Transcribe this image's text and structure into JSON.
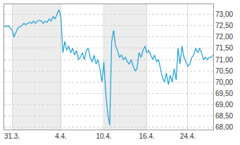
{
  "chart_data": {
    "type": "line",
    "color": "#1a9fd9",
    "grid": true,
    "categories": [
      null,
      null,
      null,
      null,
      "31.3.",
      null,
      null,
      null,
      null,
      null,
      null,
      null,
      null,
      null,
      null,
      null,
      null,
      null,
      null,
      null,
      null,
      null,
      null,
      null,
      null,
      null,
      null,
      null,
      null,
      "4.4.",
      null,
      null,
      null,
      null,
      null,
      null,
      null,
      null,
      null,
      null,
      null,
      null,
      null,
      null,
      null,
      null,
      null,
      null,
      null,
      null,
      null,
      "10.4.",
      null,
      null,
      null,
      null,
      null,
      null,
      null,
      null,
      null,
      null,
      null,
      null,
      null,
      null,
      null,
      null,
      null,
      null,
      null,
      null,
      null,
      "16.4.",
      null,
      null,
      null,
      null,
      null,
      null,
      null,
      null,
      null,
      null,
      null,
      null,
      null,
      null,
      null,
      null,
      null,
      null,
      null,
      null,
      "24.4.",
      null,
      null,
      null,
      null,
      null,
      null,
      null,
      null,
      null,
      null,
      null,
      null,
      null
    ],
    "values": [
      72.5,
      72.45,
      72.5,
      72.4,
      72.3,
      72.0,
      72.2,
      72.4,
      72.45,
      72.5,
      72.6,
      72.55,
      72.6,
      72.65,
      72.6,
      72.7,
      72.6,
      72.7,
      72.75,
      72.7,
      72.6,
      72.7,
      72.65,
      72.8,
      72.7,
      72.9,
      72.8,
      73.0,
      73.2,
      72.9,
      71.3,
      71.8,
      71.4,
      71.6,
      71.3,
      71.5,
      71.2,
      71.4,
      71.0,
      71.1,
      71.3,
      71.0,
      71.4,
      71.5,
      71.1,
      70.9,
      71.2,
      70.8,
      71.0,
      70.6,
      70.0,
      70.9,
      69.5,
      68.6,
      68.1,
      71.8,
      72.3,
      71.6,
      71.4,
      71.1,
      71.2,
      71.0,
      71.1,
      70.9,
      70.8,
      71.0,
      70.7,
      70.5,
      70.6,
      71.3,
      71.1,
      71.4,
      71.6,
      71.3,
      71.4,
      71.2,
      71.0,
      71.2,
      70.9,
      71.0,
      70.6,
      70.2,
      70.0,
      70.4,
      69.9,
      70.3,
      70.0,
      70.6,
      70.1,
      71.5,
      70.8,
      71.6,
      71.1,
      70.9,
      70.7,
      70.8,
      71.1,
      71.2,
      71.5,
      71.3,
      71.5,
      71.3,
      71.0,
      71.1,
      71.0,
      71.1,
      71.1,
      71.2
    ],
    "ylim": [
      67.9,
      73.45
    ],
    "yticks": [
      {
        "value": 68,
        "label": "68,00"
      },
      {
        "value": 68.5,
        "label": "68,50"
      },
      {
        "value": 69,
        "label": "69,00"
      },
      {
        "value": 69.5,
        "label": "69,50"
      },
      {
        "value": 70,
        "label": "70,00"
      },
      {
        "value": 70.5,
        "label": "70,50"
      },
      {
        "value": 71,
        "label": "71,00"
      },
      {
        "value": 71.5,
        "label": "71,50"
      },
      {
        "value": 72,
        "label": "72,00"
      },
      {
        "value": 72.5,
        "label": "72,50"
      },
      {
        "value": 73,
        "label": "73,00"
      }
    ]
  }
}
